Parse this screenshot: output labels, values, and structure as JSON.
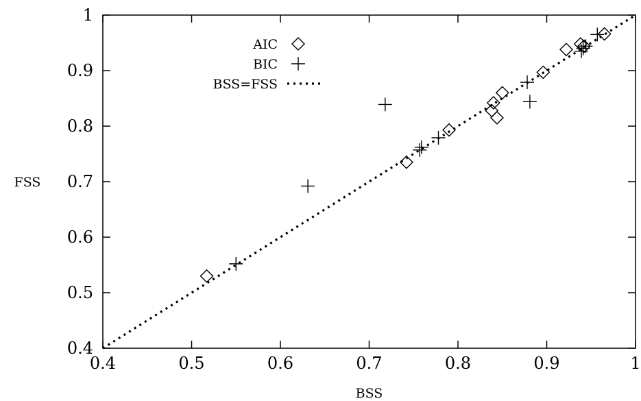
{
  "chart_data": {
    "type": "scatter",
    "title": "",
    "xlabel": "BSS",
    "ylabel": "FSS",
    "xlim": [
      0.4,
      1.0
    ],
    "ylim": [
      0.4,
      1.0
    ],
    "xticks": [
      "0.4",
      "0.5",
      "0.6",
      "0.7",
      "0.8",
      "0.9",
      "1"
    ],
    "yticks": [
      "0.4",
      "0.5",
      "0.6",
      "0.7",
      "0.8",
      "0.9",
      "1"
    ],
    "grid": false,
    "legend_position": "top-left",
    "series": [
      {
        "name": "AIC",
        "marker": "diamond",
        "points": [
          [
            0.517,
            0.53
          ],
          [
            0.742,
            0.735
          ],
          [
            0.79,
            0.793
          ],
          [
            0.838,
            0.828
          ],
          [
            0.84,
            0.842
          ],
          [
            0.844,
            0.815
          ],
          [
            0.85,
            0.86
          ],
          [
            0.896,
            0.897
          ],
          [
            0.922,
            0.938
          ],
          [
            0.938,
            0.948
          ],
          [
            0.942,
            0.944
          ],
          [
            0.965,
            0.966
          ]
        ]
      },
      {
        "name": "BIC",
        "marker": "plus",
        "points": [
          [
            0.55,
            0.552
          ],
          [
            0.631,
            0.692
          ],
          [
            0.718,
            0.839
          ],
          [
            0.757,
            0.757
          ],
          [
            0.759,
            0.762
          ],
          [
            0.778,
            0.779
          ],
          [
            0.878,
            0.879
          ],
          [
            0.881,
            0.844
          ],
          [
            0.939,
            0.935
          ],
          [
            0.941,
            0.94
          ],
          [
            0.944,
            0.944
          ],
          [
            0.957,
            0.965
          ]
        ]
      },
      {
        "name": "BSS=FSS",
        "marker": "dotted-line",
        "points": [
          [
            0.4,
            0.4
          ],
          [
            1.0,
            1.0
          ]
        ]
      }
    ]
  }
}
